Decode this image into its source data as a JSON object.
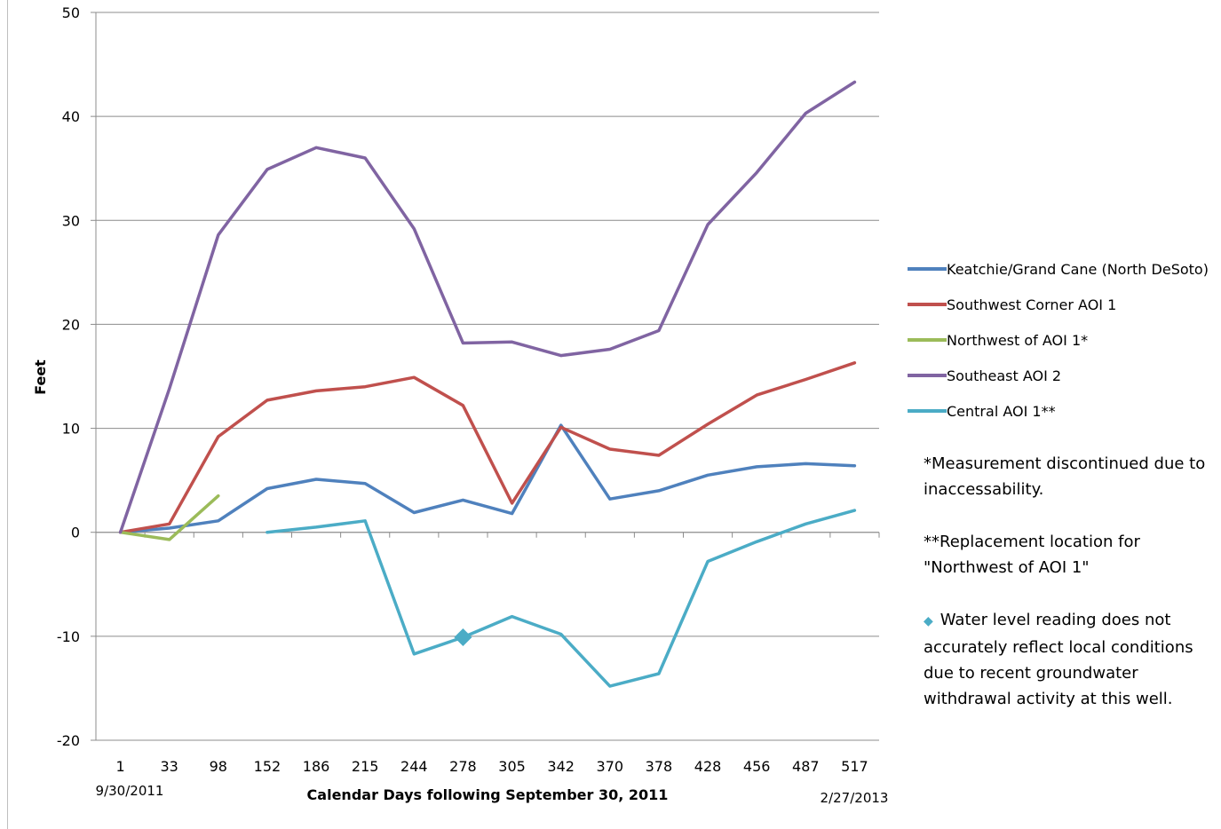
{
  "chart_data": {
    "type": "line",
    "xlabel": "Calendar Days following September 30, 2011",
    "ylabel": "Feet",
    "ylim": [
      -20,
      50
    ],
    "yticks": [
      50,
      40,
      30,
      20,
      10,
      0,
      -10,
      -20
    ],
    "categories": [
      "1",
      "33",
      "98",
      "152",
      "186",
      "215",
      "244",
      "278",
      "305",
      "342",
      "370",
      "378",
      "428",
      "456",
      "487",
      "517"
    ],
    "x_start_date_label": "9/30/2011",
    "x_end_date_label": "2/27/2013",
    "grid": "horizontal",
    "legend_position": "right",
    "series": [
      {
        "name": "Keatchie/Grand Cane (North DeSoto)",
        "color": "#4F81BD",
        "values": [
          0,
          0.4,
          1.1,
          4.2,
          5.1,
          4.7,
          1.9,
          3.1,
          1.8,
          10.3,
          3.2,
          4.0,
          5.5,
          6.3,
          6.6,
          6.4
        ]
      },
      {
        "name": "Southwest Corner AOI 1",
        "color": "#C0504D",
        "values": [
          0,
          0.8,
          9.2,
          12.7,
          13.6,
          14.0,
          14.9,
          12.2,
          2.8,
          10.1,
          8.0,
          7.4,
          10.4,
          13.2,
          14.7,
          16.3
        ]
      },
      {
        "name": "Northwest of AOI 1*",
        "color": "#9BBB59",
        "values": [
          0,
          -0.7,
          3.5,
          null,
          null,
          null,
          null,
          null,
          null,
          null,
          null,
          null,
          null,
          null,
          null,
          null
        ]
      },
      {
        "name": "Southeast AOI 2",
        "color": "#8064A2",
        "values": [
          0,
          13.8,
          28.6,
          34.9,
          37.0,
          36.0,
          29.2,
          18.2,
          18.3,
          17.0,
          17.6,
          19.4,
          29.6,
          34.6,
          40.3,
          43.3
        ]
      },
      {
        "name": "Central AOI 1**",
        "color": "#4BACC6",
        "values": [
          null,
          null,
          null,
          0,
          0.5,
          1.1,
          -11.7,
          -10.1,
          -8.1,
          -9.8,
          -14.8,
          -13.6,
          -2.8,
          -0.9,
          0.8,
          2.1
        ]
      }
    ],
    "annotations": [
      {
        "series": "Central AOI 1**",
        "category": "278",
        "value": -10.1,
        "marker": "diamond"
      }
    ]
  },
  "notes": {
    "note1": "*Measurement discontinued due to inaccessability.",
    "note2": "**Replacement location for \"Northwest of AOI 1\"",
    "note3": "Water level reading does not accurately reflect local conditions due to recent groundwater withdrawal activity at this well."
  }
}
